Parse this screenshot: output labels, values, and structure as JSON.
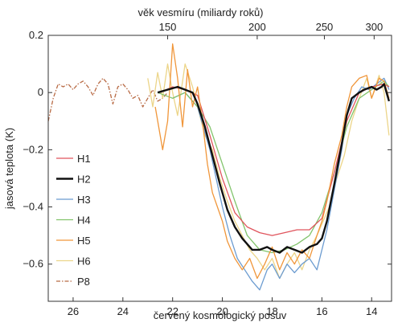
{
  "chart_data": {
    "type": "line",
    "xlabel": "červený kosmologický posuv",
    "ylabel": "jasová teplota (K)",
    "top_axis_label": "věk vesmíru (miliardy roků)",
    "x_reversed": true,
    "xlim": [
      27,
      13.2
    ],
    "ylim": [
      -0.73,
      0.2
    ],
    "x_ticks": [
      26,
      24,
      22,
      20,
      18,
      16,
      14
    ],
    "y_ticks": [
      0.2,
      0,
      -0.2,
      -0.4,
      -0.6
    ],
    "y_tick_labels": [
      "0.2",
      "0",
      "−0.2",
      "−0.4",
      "−0.6"
    ],
    "top_ticks": [
      {
        "label": "150",
        "z": 22.2
      },
      {
        "label": "200",
        "z": 18.6
      },
      {
        "label": "250",
        "z": 15.9
      },
      {
        "label": "300",
        "z": 13.9
      }
    ],
    "legend_position": "left",
    "series": [
      {
        "name": "H1",
        "color": "#e0545c",
        "dash": "solid",
        "width": 1.3,
        "x": [
          22.5,
          22.0,
          21.5,
          21.0,
          20.5,
          20.0,
          19.5,
          19.0,
          18.5,
          18.0,
          17.5,
          17.0,
          16.5,
          16.0,
          15.5,
          15.0,
          14.5,
          14.0,
          13.5,
          13.3
        ],
        "y": [
          0.0,
          0.02,
          0.01,
          -0.01,
          -0.15,
          -0.3,
          -0.42,
          -0.47,
          -0.49,
          -0.5,
          -0.49,
          -0.48,
          -0.48,
          -0.44,
          -0.28,
          -0.1,
          0.0,
          0.02,
          0.03,
          0.02
        ]
      },
      {
        "name": "H2",
        "color": "#111111",
        "dash": "solid",
        "width": 2.4,
        "x": [
          22.6,
          22.2,
          21.8,
          21.5,
          21.2,
          21.0,
          20.7,
          20.4,
          20.1,
          19.8,
          19.5,
          19.2,
          19.0,
          18.8,
          18.5,
          18.2,
          18.0,
          17.7,
          17.4,
          17.1,
          16.8,
          16.5,
          16.2,
          16.0,
          15.8,
          15.5,
          15.2,
          15.0,
          14.8,
          14.5,
          14.3,
          14.0,
          13.8,
          13.6,
          13.5,
          13.3
        ],
        "y": [
          0.0,
          0.01,
          0.02,
          0.01,
          0.0,
          -0.04,
          -0.12,
          -0.22,
          -0.32,
          -0.41,
          -0.47,
          -0.51,
          -0.53,
          -0.55,
          -0.55,
          -0.54,
          -0.55,
          -0.56,
          -0.54,
          -0.55,
          -0.56,
          -0.54,
          -0.53,
          -0.51,
          -0.45,
          -0.32,
          -0.18,
          -0.08,
          -0.02,
          0.0,
          0.01,
          0.02,
          0.01,
          0.02,
          0.03,
          -0.03
        ]
      },
      {
        "name": "H3",
        "color": "#6b9bd0",
        "dash": "solid",
        "width": 1.3,
        "x": [
          22.0,
          21.5,
          21.0,
          20.5,
          20.0,
          19.7,
          19.4,
          19.1,
          18.8,
          18.5,
          18.2,
          18.0,
          17.7,
          17.4,
          17.1,
          16.8,
          16.5,
          16.2,
          16.0,
          15.8,
          15.5,
          15.2,
          15.0,
          14.7,
          14.4,
          14.1,
          13.8,
          13.5,
          13.3
        ],
        "y": [
          -0.02,
          0.0,
          -0.05,
          -0.2,
          -0.4,
          -0.5,
          -0.58,
          -0.62,
          -0.66,
          -0.69,
          -0.62,
          -0.6,
          -0.65,
          -0.6,
          -0.63,
          -0.6,
          -0.58,
          -0.62,
          -0.55,
          -0.48,
          -0.34,
          -0.2,
          -0.08,
          -0.02,
          0.02,
          0.01,
          0.03,
          0.05,
          0.01
        ]
      },
      {
        "name": "H4",
        "color": "#82c46c",
        "dash": "solid",
        "width": 1.3,
        "x": [
          22.6,
          22.0,
          21.5,
          21.0,
          20.5,
          20.0,
          19.5,
          19.0,
          18.5,
          18.0,
          17.5,
          17.0,
          16.5,
          16.0,
          15.5,
          15.0,
          14.5,
          14.0,
          13.5,
          13.3
        ],
        "y": [
          0.0,
          -0.02,
          0.0,
          -0.05,
          -0.12,
          -0.25,
          -0.38,
          -0.5,
          -0.55,
          -0.56,
          -0.55,
          -0.53,
          -0.5,
          -0.42,
          -0.28,
          -0.12,
          -0.02,
          0.01,
          0.04,
          0.02
        ]
      },
      {
        "name": "H5",
        "color": "#f0963a",
        "dash": "solid",
        "width": 1.3,
        "x": [
          22.7,
          22.4,
          22.2,
          22.0,
          21.8,
          21.6,
          21.4,
          21.2,
          21.0,
          20.8,
          20.6,
          20.4,
          20.2,
          20.0,
          19.8,
          19.5,
          19.2,
          18.9,
          18.6,
          18.3,
          18.0,
          17.7,
          17.4,
          17.1,
          16.8,
          16.5,
          16.2,
          16.0,
          15.8,
          15.5,
          15.2,
          15.0,
          14.8,
          14.5,
          14.2,
          14.0,
          13.7,
          13.5,
          13.3
        ],
        "y": [
          -0.05,
          -0.2,
          -0.1,
          0.17,
          0.05,
          -0.12,
          0.08,
          -0.05,
          0.02,
          -0.1,
          -0.25,
          -0.35,
          -0.4,
          -0.45,
          -0.52,
          -0.58,
          -0.62,
          -0.58,
          -0.65,
          -0.6,
          -0.54,
          -0.62,
          -0.56,
          -0.6,
          -0.55,
          -0.58,
          -0.5,
          -0.45,
          -0.38,
          -0.25,
          -0.15,
          -0.05,
          0.02,
          0.05,
          0.06,
          -0.02,
          0.05,
          0.04,
          -0.02
        ]
      },
      {
        "name": "H6",
        "color": "#ecd589",
        "dash": "solid",
        "width": 1.3,
        "x": [
          23.0,
          22.8,
          22.6,
          22.4,
          22.2,
          22.0,
          21.8,
          21.5,
          21.2,
          21.0,
          20.7,
          20.4,
          20.1,
          19.8,
          19.5,
          19.2,
          18.9,
          18.6,
          18.3,
          18.0,
          17.7,
          17.4,
          17.1,
          16.8,
          16.5,
          16.2,
          16.0,
          15.7,
          15.4,
          15.1,
          14.8,
          14.5,
          14.2,
          14.0,
          13.7,
          13.5,
          13.3
        ],
        "y": [
          0.05,
          -0.05,
          0.07,
          -0.02,
          0.1,
          0.0,
          -0.08,
          0.1,
          0.02,
          -0.05,
          -0.15,
          -0.2,
          -0.3,
          -0.38,
          -0.45,
          -0.5,
          -0.55,
          -0.58,
          -0.62,
          -0.58,
          -0.65,
          -0.6,
          -0.56,
          -0.62,
          -0.55,
          -0.5,
          -0.46,
          -0.4,
          -0.3,
          -0.22,
          -0.1,
          -0.02,
          0.05,
          -0.02,
          0.06,
          0.0,
          -0.15
        ]
      },
      {
        "name": "P8",
        "color": "#b86a44",
        "dash": "dashdot",
        "width": 1.3,
        "x": [
          27.0,
          26.8,
          26.6,
          26.4,
          26.2,
          26.0,
          25.8,
          25.6,
          25.4,
          25.2,
          25.0,
          24.8,
          24.6,
          24.4,
          24.2,
          24.0,
          23.8,
          23.6,
          23.4,
          23.2,
          23.0,
          22.8,
          22.6,
          22.4,
          22.2
        ],
        "y": [
          -0.1,
          -0.02,
          0.03,
          0.02,
          0.03,
          0.01,
          0.03,
          0.04,
          0.02,
          -0.01,
          0.03,
          0.05,
          0.03,
          -0.04,
          0.02,
          0.03,
          0.01,
          -0.02,
          -0.01,
          -0.05,
          -0.02,
          0.01,
          -0.03,
          -0.02,
          0.0
        ]
      }
    ]
  }
}
